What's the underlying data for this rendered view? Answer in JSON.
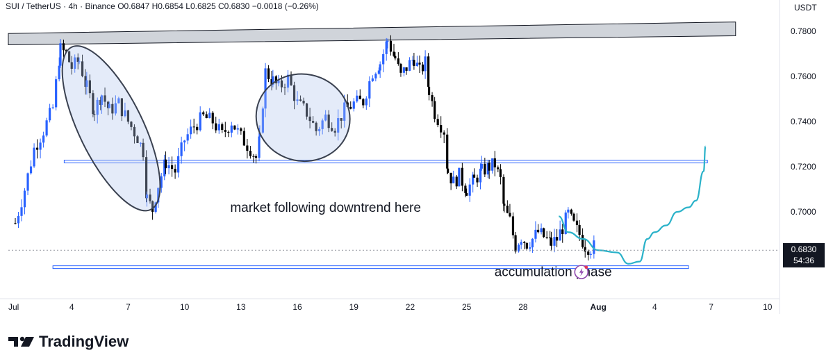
{
  "header": {
    "symbol": "SUI / TetherUS · 4h · Binance",
    "ohlc": "O0.6847 H0.6854 L0.6825 C0.6830 −0.0018 (−0.26%)"
  },
  "price_axis_unit": "USDT",
  "last_price": {
    "value": "0.6830",
    "countdown": "54:36"
  },
  "brand": {
    "name": "TradingView"
  },
  "colors": {
    "up": "#2962ff",
    "down": "#000000",
    "projection": "#2ab2c9",
    "zone_fill": "#c8cdd4"
  },
  "chart_data": {
    "type": "candlestick",
    "title": "",
    "symbol": "SUI / TetherUS",
    "timeframe": "4h",
    "exchange": "Binance",
    "y_axis": {
      "ticks": [
        0.78,
        0.76,
        0.74,
        0.72,
        0.7,
        0.683
      ],
      "tick_labels": [
        "0.7800",
        "0.7600",
        "0.7400",
        "0.7200",
        "0.7000"
      ],
      "ylim": [
        0.666,
        0.789
      ],
      "position": "right"
    },
    "x_axis": {
      "ticks": [
        {
          "day": 1,
          "label": "Jul"
        },
        {
          "day": 4,
          "label": "4"
        },
        {
          "day": 7,
          "label": "7"
        },
        {
          "day": 10,
          "label": "10"
        },
        {
          "day": 13,
          "label": "13"
        },
        {
          "day": 16,
          "label": "16"
        },
        {
          "day": 19,
          "label": "19"
        },
        {
          "day": 22,
          "label": "22"
        },
        {
          "day": 25,
          "label": "25"
        },
        {
          "day": 28,
          "label": "28"
        },
        {
          "day": 32,
          "label": "Aug"
        },
        {
          "day": 35,
          "label": "4"
        },
        {
          "day": 38,
          "label": "7"
        },
        {
          "day": 41,
          "label": "10"
        }
      ],
      "xlim": [
        1,
        42
      ]
    },
    "grid": false,
    "path": [
      [
        1.0,
        0.695
      ],
      [
        1.5,
        0.71
      ],
      [
        2.0,
        0.728
      ],
      [
        2.5,
        0.736
      ],
      [
        3.0,
        0.746
      ],
      [
        3.4,
        0.772
      ],
      [
        3.7,
        0.77
      ],
      [
        4.0,
        0.764
      ],
      [
        4.4,
        0.767
      ],
      [
        4.8,
        0.755
      ],
      [
        5.2,
        0.745
      ],
      [
        5.6,
        0.752
      ],
      [
        6.0,
        0.745
      ],
      [
        6.5,
        0.748
      ],
      [
        7.0,
        0.74
      ],
      [
        7.5,
        0.733
      ],
      [
        7.8,
        0.727
      ],
      [
        8.0,
        0.706
      ],
      [
        8.3,
        0.701
      ],
      [
        8.6,
        0.712
      ],
      [
        9.0,
        0.722
      ],
      [
        9.5,
        0.718
      ],
      [
        10.0,
        0.732
      ],
      [
        10.5,
        0.738
      ],
      [
        11.0,
        0.742
      ],
      [
        11.5,
        0.74
      ],
      [
        12.0,
        0.734
      ],
      [
        12.5,
        0.74
      ],
      [
        13.0,
        0.733
      ],
      [
        13.5,
        0.728
      ],
      [
        13.8,
        0.724
      ],
      [
        14.0,
        0.732
      ],
      [
        14.3,
        0.762
      ],
      [
        14.7,
        0.758
      ],
      [
        15.0,
        0.755
      ],
      [
        15.5,
        0.759
      ],
      [
        16.0,
        0.748
      ],
      [
        16.5,
        0.744
      ],
      [
        17.0,
        0.736
      ],
      [
        17.5,
        0.742
      ],
      [
        18.0,
        0.738
      ],
      [
        18.5,
        0.745
      ],
      [
        19.0,
        0.748
      ],
      [
        19.5,
        0.749
      ],
      [
        20.0,
        0.762
      ],
      [
        20.4,
        0.766
      ],
      [
        20.8,
        0.776
      ],
      [
        21.2,
        0.768
      ],
      [
        21.5,
        0.76
      ],
      [
        21.8,
        0.764
      ],
      [
        22.2,
        0.768
      ],
      [
        22.5,
        0.762
      ],
      [
        22.8,
        0.766
      ],
      [
        23.0,
        0.754
      ],
      [
        23.3,
        0.744
      ],
      [
        23.8,
        0.736
      ],
      [
        24.0,
        0.718
      ],
      [
        24.3,
        0.713
      ],
      [
        24.6,
        0.716
      ],
      [
        25.0,
        0.71
      ],
      [
        25.4,
        0.714
      ],
      [
        25.8,
        0.718
      ],
      [
        26.2,
        0.72
      ],
      [
        26.5,
        0.721
      ],
      [
        26.8,
        0.714
      ],
      [
        27.0,
        0.701
      ],
      [
        27.3,
        0.696
      ],
      [
        27.6,
        0.685
      ],
      [
        27.9,
        0.689
      ],
      [
        28.2,
        0.686
      ],
      [
        28.5,
        0.688
      ],
      [
        28.8,
        0.691
      ],
      [
        29.1,
        0.689
      ],
      [
        29.5,
        0.686
      ],
      [
        29.8,
        0.688
      ],
      [
        30.1,
        0.693
      ],
      [
        30.4,
        0.699
      ],
      [
        30.7,
        0.694
      ],
      [
        31.0,
        0.69
      ],
      [
        31.3,
        0.685
      ],
      [
        31.6,
        0.684
      ],
      [
        31.9,
        0.685
      ]
    ],
    "horizontal_levels": [
      {
        "name": "resistance-zone",
        "y_start": 0.7725,
        "y_end": 0.7835
      },
      {
        "name": "mid-level",
        "y": 0.7223
      },
      {
        "name": "support-level",
        "y": 0.6755
      }
    ],
    "ellipses": [
      {
        "x_range": [
          3.0,
          9.2
        ],
        "y_range": [
          0.6995,
          0.7745
        ]
      },
      {
        "x_range": [
          13.8,
          18.8
        ],
        "y_range": [
          0.7225,
          0.761
        ]
      }
    ],
    "projection_path": [
      [
        29.9,
        0.698
      ],
      [
        30.4,
        0.691
      ],
      [
        31.2,
        0.688
      ],
      [
        32.0,
        0.683
      ],
      [
        33.0,
        0.682
      ],
      [
        33.6,
        0.677
      ],
      [
        34.2,
        0.678
      ],
      [
        34.6,
        0.688
      ],
      [
        35.0,
        0.691
      ],
      [
        35.6,
        0.694
      ],
      [
        36.2,
        0.7
      ],
      [
        36.8,
        0.702
      ],
      [
        37.2,
        0.705
      ],
      [
        37.6,
        0.718
      ],
      [
        37.7,
        0.729
      ]
    ],
    "annotations": [
      {
        "text": "market following downtrend here",
        "x": 17.5,
        "y": 0.7
      },
      {
        "text": "accumulation phase",
        "x": 29.6,
        "y": 0.6715
      }
    ]
  }
}
